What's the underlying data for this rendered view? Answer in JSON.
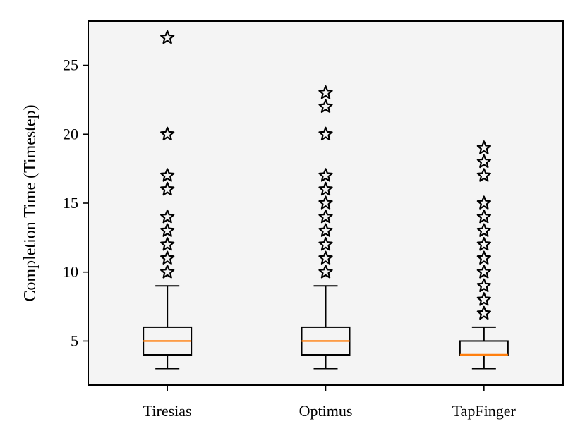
{
  "chart_data": {
    "type": "box",
    "ylabel": "Completion Time (Timestep)",
    "xlabel": "",
    "ylim": [
      1.8,
      28.2
    ],
    "yticks": [
      5,
      10,
      15,
      20,
      25
    ],
    "categories": [
      "Tiresias",
      "Optimus",
      "TapFinger"
    ],
    "boxes": [
      {
        "category": "Tiresias",
        "whisker_low": 3,
        "q1": 4,
        "median": 5,
        "q3": 6,
        "whisker_high": 9,
        "outliers": [
          10,
          11,
          12,
          13,
          14,
          16,
          17,
          20,
          27
        ]
      },
      {
        "category": "Optimus",
        "whisker_low": 3,
        "q1": 4,
        "median": 5,
        "q3": 6,
        "whisker_high": 9,
        "outliers": [
          10,
          11,
          12,
          13,
          14,
          15,
          16,
          17,
          20,
          22,
          23
        ]
      },
      {
        "category": "TapFinger",
        "whisker_low": 3,
        "q1": 4,
        "median": 4,
        "q3": 5,
        "whisker_high": 6,
        "outliers": [
          7,
          8,
          9,
          10,
          11,
          12,
          13,
          14,
          15,
          17,
          18,
          19
        ]
      }
    ],
    "colors": {
      "plot_background": "#f4f4f4",
      "box": "#000000",
      "median": "#ff7f0e",
      "outlier_marker": "#000000"
    },
    "outlier_marker": "star",
    "grid": false,
    "legend": "none"
  }
}
